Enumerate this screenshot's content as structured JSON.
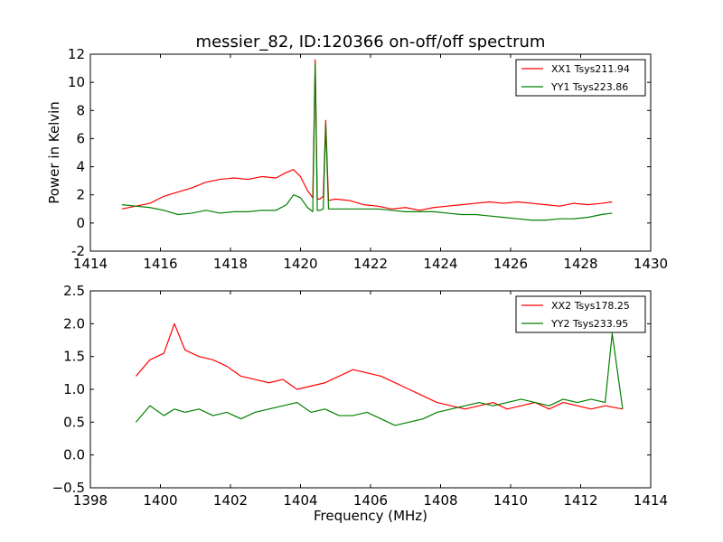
{
  "figure": {
    "title": "messier_82, ID:120366 on-off/off spectrum",
    "background": "#ffffff"
  },
  "chart_data": [
    {
      "type": "line",
      "title": "messier_82, ID:120366 on-off/off spectrum",
      "xlabel": "",
      "ylabel": "Power in Kelvin",
      "xlim": [
        1414,
        1430
      ],
      "ylim": [
        -2,
        12
      ],
      "xticks": [
        1414,
        1416,
        1418,
        1420,
        1422,
        1424,
        1426,
        1428,
        1430
      ],
      "yticks": [
        -2,
        0,
        2,
        4,
        6,
        8,
        10,
        12
      ],
      "grid": false,
      "legend_position": "top-right",
      "series": [
        {
          "name": "XX1 Tsys211.94",
          "color": "#ff0000",
          "x": [
            1414.9,
            1415.3,
            1415.7,
            1416.1,
            1416.5,
            1416.9,
            1417.3,
            1417.7,
            1418.1,
            1418.5,
            1418.9,
            1419.3,
            1419.6,
            1419.8,
            1420.0,
            1420.2,
            1420.35,
            1420.42,
            1420.48,
            1420.55,
            1420.65,
            1420.72,
            1420.8,
            1421.0,
            1421.4,
            1421.8,
            1422.2,
            1422.6,
            1423.0,
            1423.4,
            1423.8,
            1424.2,
            1424.6,
            1425.0,
            1425.4,
            1425.8,
            1426.2,
            1426.6,
            1427.0,
            1427.4,
            1427.8,
            1428.2,
            1428.6,
            1428.9
          ],
          "values": [
            1.0,
            1.2,
            1.4,
            1.9,
            2.2,
            2.5,
            2.9,
            3.1,
            3.2,
            3.1,
            3.3,
            3.2,
            3.6,
            3.8,
            3.3,
            2.3,
            1.8,
            11.6,
            1.7,
            1.7,
            1.9,
            7.3,
            1.6,
            1.7,
            1.6,
            1.3,
            1.2,
            1.0,
            1.1,
            0.9,
            1.1,
            1.2,
            1.3,
            1.4,
            1.5,
            1.4,
            1.5,
            1.4,
            1.3,
            1.2,
            1.4,
            1.3,
            1.4,
            1.5
          ]
        },
        {
          "name": "YY1 Tsys223.86",
          "color": "#008000",
          "x": [
            1414.9,
            1415.3,
            1415.7,
            1416.1,
            1416.5,
            1416.9,
            1417.3,
            1417.7,
            1418.1,
            1418.5,
            1418.9,
            1419.3,
            1419.6,
            1419.8,
            1420.0,
            1420.2,
            1420.35,
            1420.42,
            1420.48,
            1420.55,
            1420.65,
            1420.72,
            1420.8,
            1421.0,
            1421.4,
            1421.8,
            1422.2,
            1422.6,
            1423.0,
            1423.4,
            1423.8,
            1424.2,
            1424.6,
            1425.0,
            1425.4,
            1425.8,
            1426.2,
            1426.6,
            1427.0,
            1427.4,
            1427.8,
            1428.2,
            1428.6,
            1428.9
          ],
          "values": [
            1.3,
            1.2,
            1.1,
            0.9,
            0.6,
            0.7,
            0.9,
            0.7,
            0.8,
            0.8,
            0.9,
            0.9,
            1.3,
            2.0,
            1.8,
            1.1,
            0.8,
            11.3,
            0.9,
            0.9,
            1.0,
            7.0,
            1.0,
            1.0,
            1.0,
            1.0,
            1.0,
            0.9,
            0.8,
            0.8,
            0.8,
            0.7,
            0.6,
            0.6,
            0.5,
            0.4,
            0.3,
            0.2,
            0.2,
            0.3,
            0.3,
            0.4,
            0.6,
            0.7
          ]
        }
      ]
    },
    {
      "type": "line",
      "title": "",
      "xlabel": "Frequency (MHz)",
      "ylabel": "",
      "xlim": [
        1398,
        1414
      ],
      "ylim": [
        -0.5,
        2.5
      ],
      "xticks": [
        1398,
        1400,
        1402,
        1404,
        1406,
        1408,
        1410,
        1412,
        1414
      ],
      "yticks": [
        -0.5,
        0.0,
        0.5,
        1.0,
        1.5,
        2.0,
        2.5
      ],
      "yticklabels": [
        "−0.5",
        "0.0",
        "0.5",
        "1.0",
        "1.5",
        "2.0",
        "2.5"
      ],
      "grid": false,
      "legend_position": "top-right",
      "series": [
        {
          "name": "XX2 Tsys178.25",
          "color": "#ff0000",
          "x": [
            1399.3,
            1399.7,
            1400.1,
            1400.4,
            1400.7,
            1401.1,
            1401.5,
            1401.9,
            1402.3,
            1402.7,
            1403.1,
            1403.5,
            1403.9,
            1404.3,
            1404.7,
            1405.1,
            1405.5,
            1405.9,
            1406.3,
            1406.7,
            1407.1,
            1407.5,
            1407.9,
            1408.3,
            1408.7,
            1409.1,
            1409.5,
            1409.9,
            1410.3,
            1410.7,
            1411.1,
            1411.5,
            1411.9,
            1412.3,
            1412.7,
            1413.2
          ],
          "values": [
            1.2,
            1.45,
            1.55,
            2.0,
            1.6,
            1.5,
            1.45,
            1.35,
            1.2,
            1.15,
            1.1,
            1.15,
            1.0,
            1.05,
            1.1,
            1.2,
            1.3,
            1.25,
            1.2,
            1.1,
            1.0,
            0.9,
            0.8,
            0.75,
            0.7,
            0.75,
            0.8,
            0.7,
            0.75,
            0.8,
            0.7,
            0.8,
            0.75,
            0.7,
            0.75,
            0.7
          ]
        },
        {
          "name": "YY2 Tsys233.95",
          "color": "#008000",
          "x": [
            1399.3,
            1399.7,
            1400.1,
            1400.4,
            1400.7,
            1401.1,
            1401.5,
            1401.9,
            1402.3,
            1402.7,
            1403.1,
            1403.5,
            1403.9,
            1404.3,
            1404.7,
            1405.1,
            1405.5,
            1405.9,
            1406.3,
            1406.7,
            1407.1,
            1407.5,
            1407.9,
            1408.3,
            1408.7,
            1409.1,
            1409.5,
            1409.9,
            1410.3,
            1410.7,
            1411.1,
            1411.5,
            1411.9,
            1412.3,
            1412.7,
            1412.9,
            1413.2
          ],
          "values": [
            0.5,
            0.75,
            0.6,
            0.7,
            0.65,
            0.7,
            0.6,
            0.65,
            0.55,
            0.65,
            0.7,
            0.75,
            0.8,
            0.65,
            0.7,
            0.6,
            0.6,
            0.65,
            0.55,
            0.45,
            0.5,
            0.55,
            0.65,
            0.7,
            0.75,
            0.8,
            0.75,
            0.8,
            0.85,
            0.8,
            0.75,
            0.85,
            0.8,
            0.85,
            0.8,
            1.85,
            0.7
          ]
        }
      ]
    }
  ]
}
